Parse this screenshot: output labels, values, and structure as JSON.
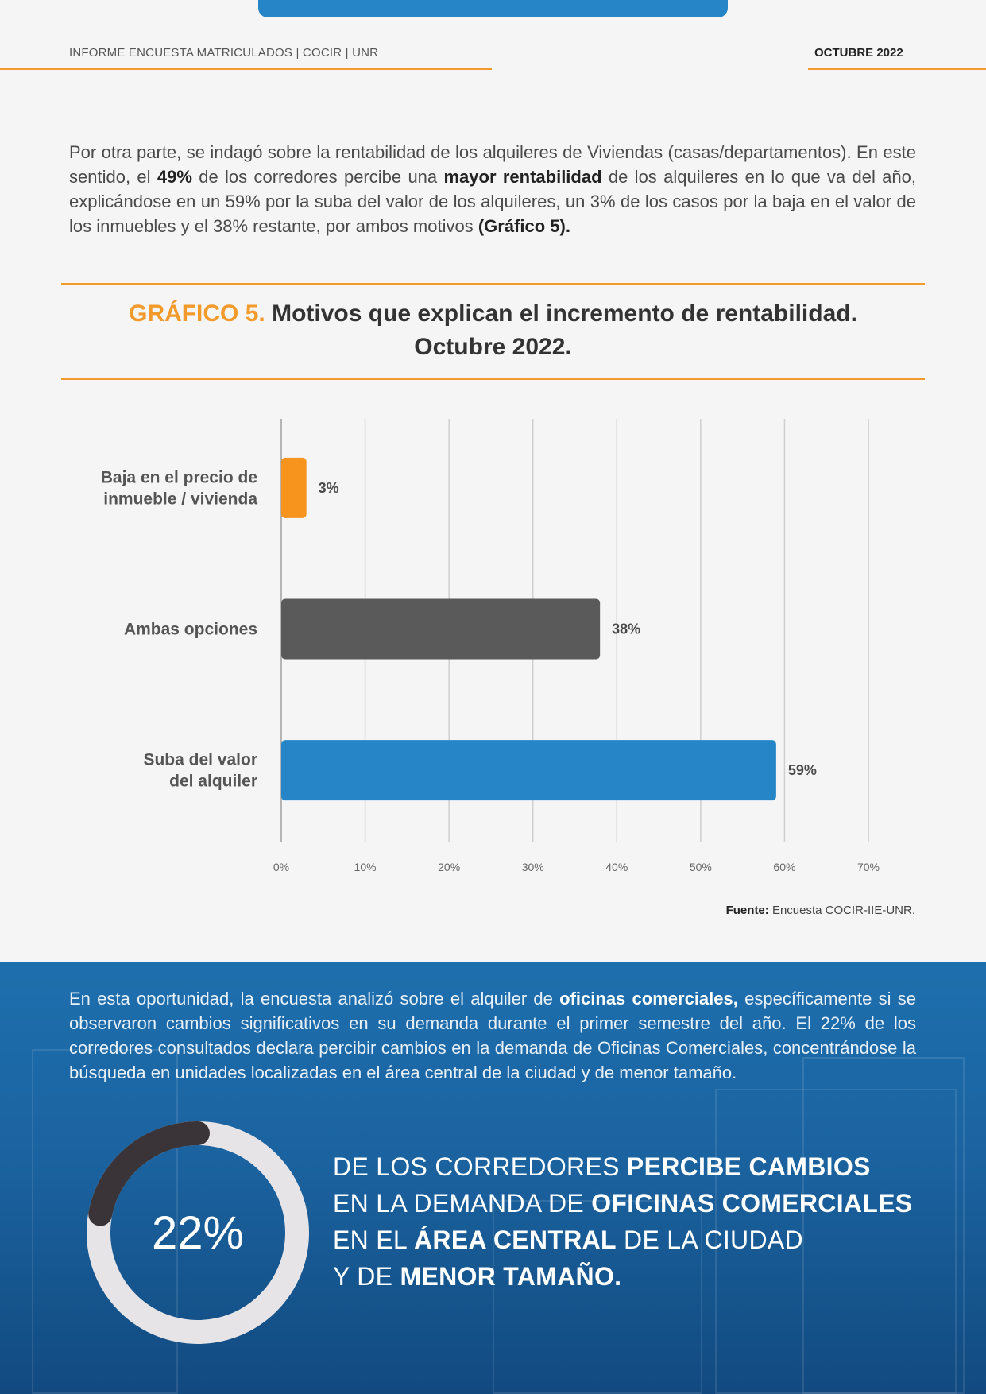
{
  "header": {
    "left": "INFORME ENCUESTA MATRICULADOS | COCIR | UNR",
    "right": "OCTUBRE 2022"
  },
  "intro": {
    "p1": "Por otra parte, se indagó sobre la rentabilidad de los alquileres de Viviendas (casas/departamentos). En este sentido, el ",
    "b1": "49%",
    "p2": " de los corredores percibe una ",
    "b2": "mayor rentabilidad",
    "p3": " de los alquileres en lo que va del año, explicándose en un 59% por la suba del valor de los alquileres, un 3% de los casos por la baja en el valor de los inmuebles y el 38% restante, por ambos motivos ",
    "b3": "(Gráfico 5)."
  },
  "chart_title": {
    "number": "GRÁFICO 5.",
    "text1": "Motivos que explican el incremento de rentabilidad.",
    "text2": "Octubre 2022."
  },
  "chart_data": {
    "type": "bar",
    "orientation": "horizontal",
    "categories": [
      [
        "Baja en el precio de",
        "inmueble / vivienda"
      ],
      [
        "Ambas opciones"
      ],
      [
        "Suba del valor",
        "del alquiler"
      ]
    ],
    "values": [
      3,
      38,
      59
    ],
    "value_labels": [
      "3%",
      "38%",
      "59%"
    ],
    "colors": [
      "#f7941d",
      "#5a5a5a",
      "#2585c7"
    ],
    "xlim": [
      0,
      70
    ],
    "xticks": [
      "0%",
      "10%",
      "20%",
      "30%",
      "40%",
      "50%",
      "60%",
      "70%"
    ],
    "grid": true
  },
  "source": {
    "label": "Fuente:",
    "text": " Encuesta COCIR-IIE-UNR."
  },
  "blue_section": {
    "p1": "En esta oportunidad, la encuesta analizó sobre el alquiler de ",
    "b1": "oficinas comerciales,",
    "p2": " específicamente si se observaron cambios significativos en su demanda durante el primer semestre del año. El 22% de los corredores consultados declara percibir cambios en la demanda de Oficinas Comerciales, concentrándose la búsqueda en unidades localizadas en el área central de la ciudad y de menor tamaño.",
    "donut_value": 22,
    "donut_label": "22%",
    "stat": {
      "l1a": "DE LOS CORREDORES ",
      "l1b": "PERCIBE CAMBIOS",
      "l2a": "EN LA DEMANDA DE ",
      "l2b": "OFICINAS COMERCIALES",
      "l3a": "EN EL ",
      "l3b": "ÁREA CENTRAL",
      "l3c": " DE LA CIUDAD",
      "l4a": "Y DE ",
      "l4b": "MENOR TAMAÑO."
    },
    "colors": {
      "donut_fill": "#3a3438",
      "donut_track": "#e6e4e6"
    }
  }
}
